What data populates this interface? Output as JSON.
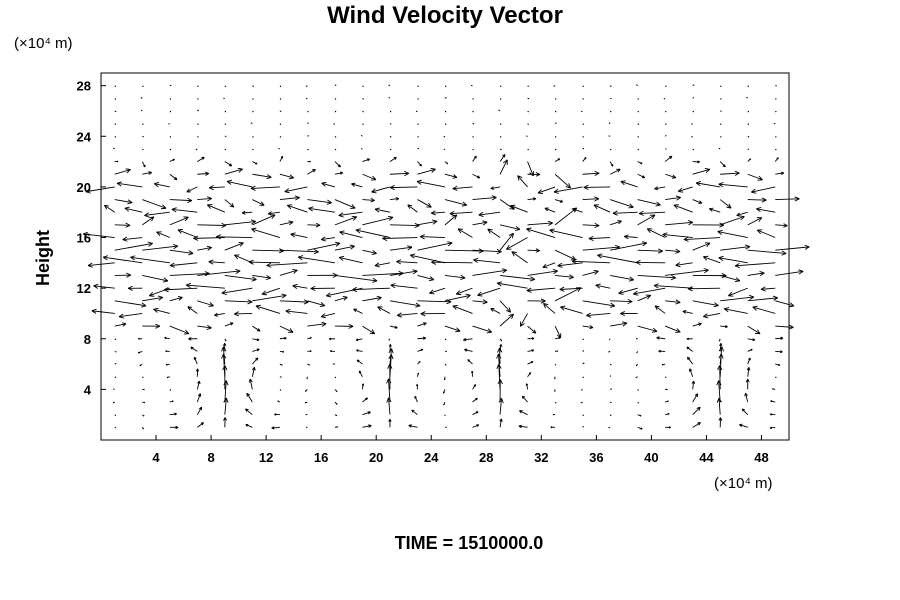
{
  "chart_data": {
    "type": "vector-field",
    "title": "Wind Velocity Vector",
    "ylabel": "Height",
    "y_unit": "(×10⁴ m)",
    "x_unit": "(×10⁴ m)",
    "xlim": [
      0,
      50
    ],
    "ylim": [
      0,
      29
    ],
    "xticks": [
      "4",
      "8",
      "12",
      "16",
      "20",
      "24",
      "28",
      "32",
      "36",
      "40",
      "44",
      "48"
    ],
    "yticks": [
      "4",
      "8",
      "12",
      "16",
      "20",
      "24",
      "28"
    ],
    "xtick_values": [
      4,
      8,
      12,
      16,
      20,
      24,
      28,
      32,
      36,
      40,
      44,
      48
    ],
    "ytick_values": [
      4,
      8,
      12,
      16,
      20,
      24,
      28
    ],
    "grid_x": [
      1,
      3,
      5,
      7,
      9,
      11,
      13,
      15,
      17,
      19,
      21,
      23,
      25,
      27,
      29,
      31,
      33,
      35,
      37,
      39,
      41,
      43,
      45,
      47,
      49
    ],
    "grid_y": [
      1,
      2,
      3,
      4,
      5,
      6,
      7,
      8,
      9,
      10,
      11,
      12,
      13,
      14,
      15,
      16,
      17,
      18,
      19,
      20,
      21,
      22,
      23,
      24,
      25,
      26,
      27,
      28
    ],
    "layers": [
      {
        "y": 22,
        "u": 0.6,
        "v": 0.0
      },
      {
        "y": 21,
        "u": 1.6,
        "v": 0.0
      },
      {
        "y": 20,
        "u": -2.4,
        "v": 0.0
      },
      {
        "y": 19,
        "u": 2.0,
        "v": -0.3
      },
      {
        "y": 18,
        "u": -2.2,
        "v": 0.2
      },
      {
        "y": 17,
        "u": 2.6,
        "v": 0.4
      },
      {
        "y": 16,
        "u": -3.0,
        "v": 0.3
      },
      {
        "y": 15,
        "u": 3.2,
        "v": 0.2
      },
      {
        "y": 14,
        "u": -3.4,
        "v": 0.2
      },
      {
        "y": 13,
        "u": 3.6,
        "v": 0.0
      },
      {
        "y": 12,
        "u": -3.2,
        "v": -0.2
      },
      {
        "y": 11,
        "u": 2.8,
        "v": 0.0
      },
      {
        "y": 10,
        "u": -2.0,
        "v": 0.2
      },
      {
        "y": 9,
        "u": 1.6,
        "v": -0.2
      }
    ]
  },
  "footer": {
    "time_label": "TIME = 1510000.0"
  }
}
